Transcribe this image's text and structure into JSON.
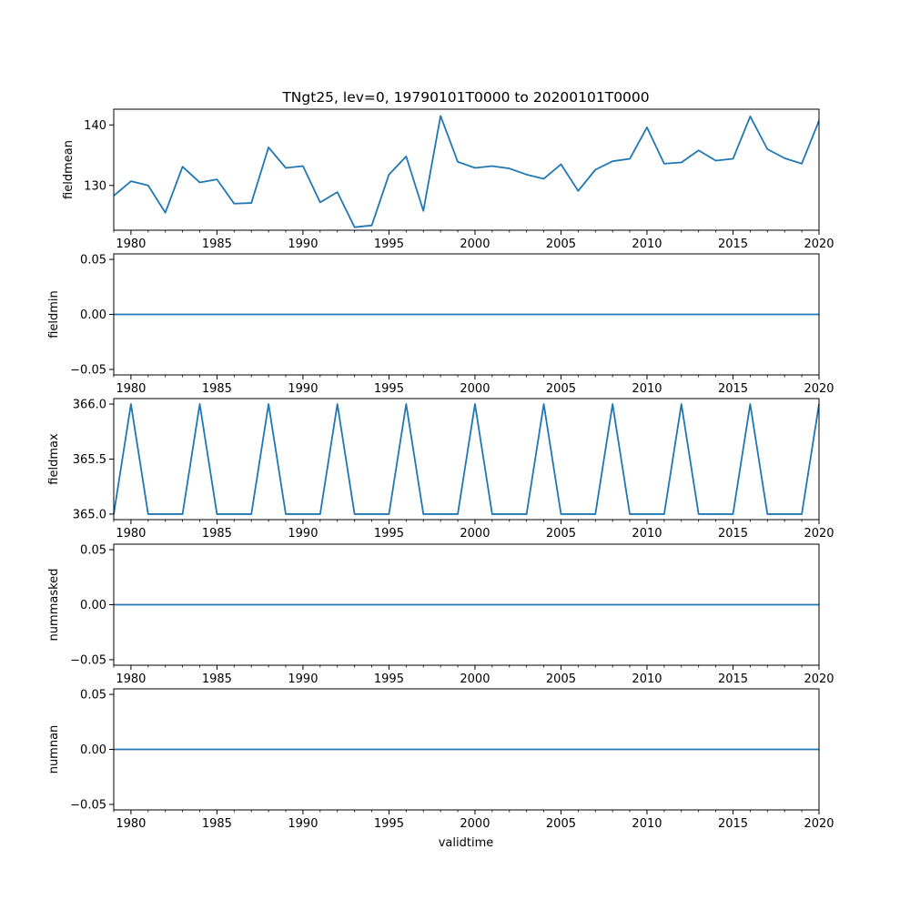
{
  "chart_data": {
    "type": "line",
    "title": "TNgt25, lev=0, 19790101T0000 to 20200101T0000",
    "xlabel": "validtime",
    "xlim": [
      1979,
      2020
    ],
    "x_ticks": [
      "1980",
      "1985",
      "1990",
      "1995",
      "2000",
      "2005",
      "2010",
      "2015",
      "2020"
    ],
    "x": [
      1979,
      1980,
      1981,
      1982,
      1983,
      1984,
      1985,
      1986,
      1987,
      1988,
      1989,
      1990,
      1991,
      1992,
      1993,
      1994,
      1995,
      1996,
      1997,
      1998,
      1999,
      2000,
      2001,
      2002,
      2003,
      2004,
      2005,
      2006,
      2007,
      2008,
      2009,
      2010,
      2011,
      2012,
      2013,
      2014,
      2015,
      2016,
      2017,
      2018,
      2019,
      2020
    ],
    "line_color": "#1f77b4",
    "subplots": [
      {
        "ylabel": "fieldmean",
        "ylim": [
          122.6,
          142.6
        ],
        "y_ticks": [
          "130",
          "140"
        ],
        "y_tick_values": [
          130,
          140
        ],
        "values": [
          128.3,
          130.7,
          130.0,
          125.5,
          133.1,
          130.5,
          131.0,
          127.0,
          127.1,
          136.3,
          132.9,
          133.2,
          127.2,
          128.9,
          123.1,
          123.4,
          131.8,
          134.8,
          125.8,
          141.5,
          133.9,
          132.9,
          133.2,
          132.8,
          131.8,
          131.1,
          133.5,
          129.1,
          132.6,
          134.0,
          134.4,
          139.6,
          133.6,
          133.8,
          135.8,
          134.1,
          134.4,
          141.4,
          136.0,
          134.5,
          133.6,
          140.7
        ]
      },
      {
        "ylabel": "fieldmin",
        "ylim": [
          -0.055,
          0.055
        ],
        "y_ticks": [
          "0.05",
          "0.00",
          "−0.05"
        ],
        "y_tick_values": [
          0.05,
          0.0,
          -0.05
        ],
        "values": [
          0,
          0,
          0,
          0,
          0,
          0,
          0,
          0,
          0,
          0,
          0,
          0,
          0,
          0,
          0,
          0,
          0,
          0,
          0,
          0,
          0,
          0,
          0,
          0,
          0,
          0,
          0,
          0,
          0,
          0,
          0,
          0,
          0,
          0,
          0,
          0,
          0,
          0,
          0,
          0,
          0,
          0
        ]
      },
      {
        "ylabel": "fieldmax",
        "ylim": [
          364.95,
          366.05
        ],
        "y_ticks": [
          "366.0",
          "365.5",
          "365.0"
        ],
        "y_tick_values": [
          366.0,
          365.5,
          365.0
        ],
        "values": [
          365,
          366,
          365,
          365,
          365,
          366,
          365,
          365,
          365,
          366,
          365,
          365,
          365,
          366,
          365,
          365,
          365,
          366,
          365,
          365,
          365,
          366,
          365,
          365,
          365,
          366,
          365,
          365,
          365,
          366,
          365,
          365,
          365,
          366,
          365,
          365,
          365,
          366,
          365,
          365,
          365,
          366
        ]
      },
      {
        "ylabel": "nummasked",
        "ylim": [
          -0.055,
          0.055
        ],
        "y_ticks": [
          "0.05",
          "0.00",
          "−0.05"
        ],
        "y_tick_values": [
          0.05,
          0.0,
          -0.05
        ],
        "values": [
          0,
          0,
          0,
          0,
          0,
          0,
          0,
          0,
          0,
          0,
          0,
          0,
          0,
          0,
          0,
          0,
          0,
          0,
          0,
          0,
          0,
          0,
          0,
          0,
          0,
          0,
          0,
          0,
          0,
          0,
          0,
          0,
          0,
          0,
          0,
          0,
          0,
          0,
          0,
          0,
          0,
          0
        ]
      },
      {
        "ylabel": "numnan",
        "ylim": [
          -0.055,
          0.055
        ],
        "y_ticks": [
          "0.05",
          "0.00",
          "−0.05"
        ],
        "y_tick_values": [
          0.05,
          0.0,
          -0.05
        ],
        "values": [
          0,
          0,
          0,
          0,
          0,
          0,
          0,
          0,
          0,
          0,
          0,
          0,
          0,
          0,
          0,
          0,
          0,
          0,
          0,
          0,
          0,
          0,
          0,
          0,
          0,
          0,
          0,
          0,
          0,
          0,
          0,
          0,
          0,
          0,
          0,
          0,
          0,
          0,
          0,
          0,
          0,
          0
        ]
      }
    ]
  }
}
